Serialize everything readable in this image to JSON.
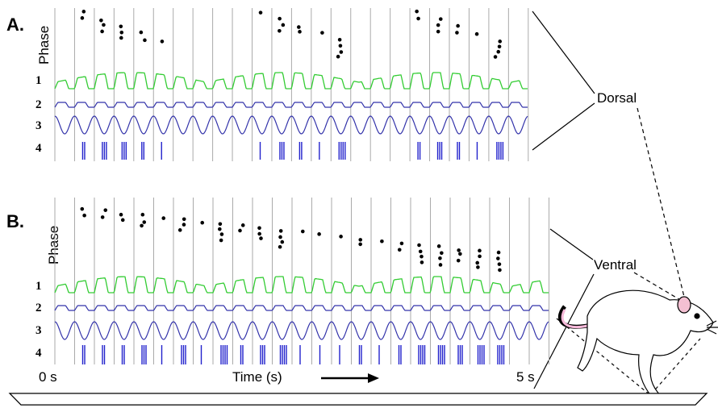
{
  "panels": [
    {
      "label": "A.",
      "y_label": "Phase",
      "traces": [
        "1",
        "2",
        "3",
        "4"
      ]
    },
    {
      "label": "B.",
      "y_label": "Phase",
      "traces": [
        "1",
        "2",
        "3",
        "4"
      ]
    }
  ],
  "regions": [
    "Dorsal",
    "Ventral"
  ],
  "axis": {
    "start": "0 s",
    "label": "Time (s)",
    "end": "5 s"
  }
}
